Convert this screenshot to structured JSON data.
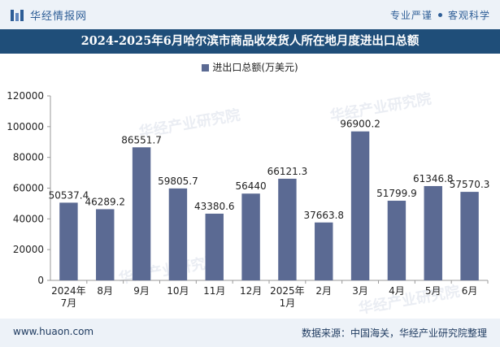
{
  "header": {
    "brand": "华经情报网",
    "tagline_left": "专业严谨",
    "tagline_right": "客观科学"
  },
  "footer": {
    "website": "www.huaon.com",
    "source": "数据来源：中国海关，华经产业研究院整理"
  },
  "watermarks": [
    "华经产业研究院",
    "华经产业研究院",
    "华经产业研究院",
    "华经产业研究院"
  ],
  "colors": {
    "bar": "#5b6a93",
    "title_bg": "#1f4e79",
    "header_bg": "#edf2f8"
  },
  "chart_data": {
    "type": "bar",
    "title": "2024-2025年6月哈尔滨市商品收发货人所在地月度进出口总额",
    "categories": [
      "2024年\n7月",
      "8月",
      "9月",
      "10月",
      "11月",
      "12月",
      "2025年\n1月",
      "2月",
      "3月",
      "4月",
      "5月",
      "6月"
    ],
    "series": [
      {
        "name": "进出口总额(万美元)",
        "values": [
          50537.4,
          46289.2,
          86551.7,
          59805.7,
          43380.6,
          56440,
          66121.3,
          37663.8,
          96900.2,
          51799.9,
          61346.8,
          57570.3
        ],
        "labels": [
          "50537.4",
          "46289.2",
          "86551.7",
          "59805.7",
          "43380.6",
          "56440",
          "66121.3",
          "37663.8",
          "96900.2",
          "51799.9",
          "61346.8",
          "57570.3"
        ]
      }
    ],
    "ylim": [
      0,
      120000
    ],
    "yticks": [
      0,
      20000,
      40000,
      60000,
      80000,
      100000,
      120000
    ],
    "legend": "top-center",
    "grid": false
  }
}
